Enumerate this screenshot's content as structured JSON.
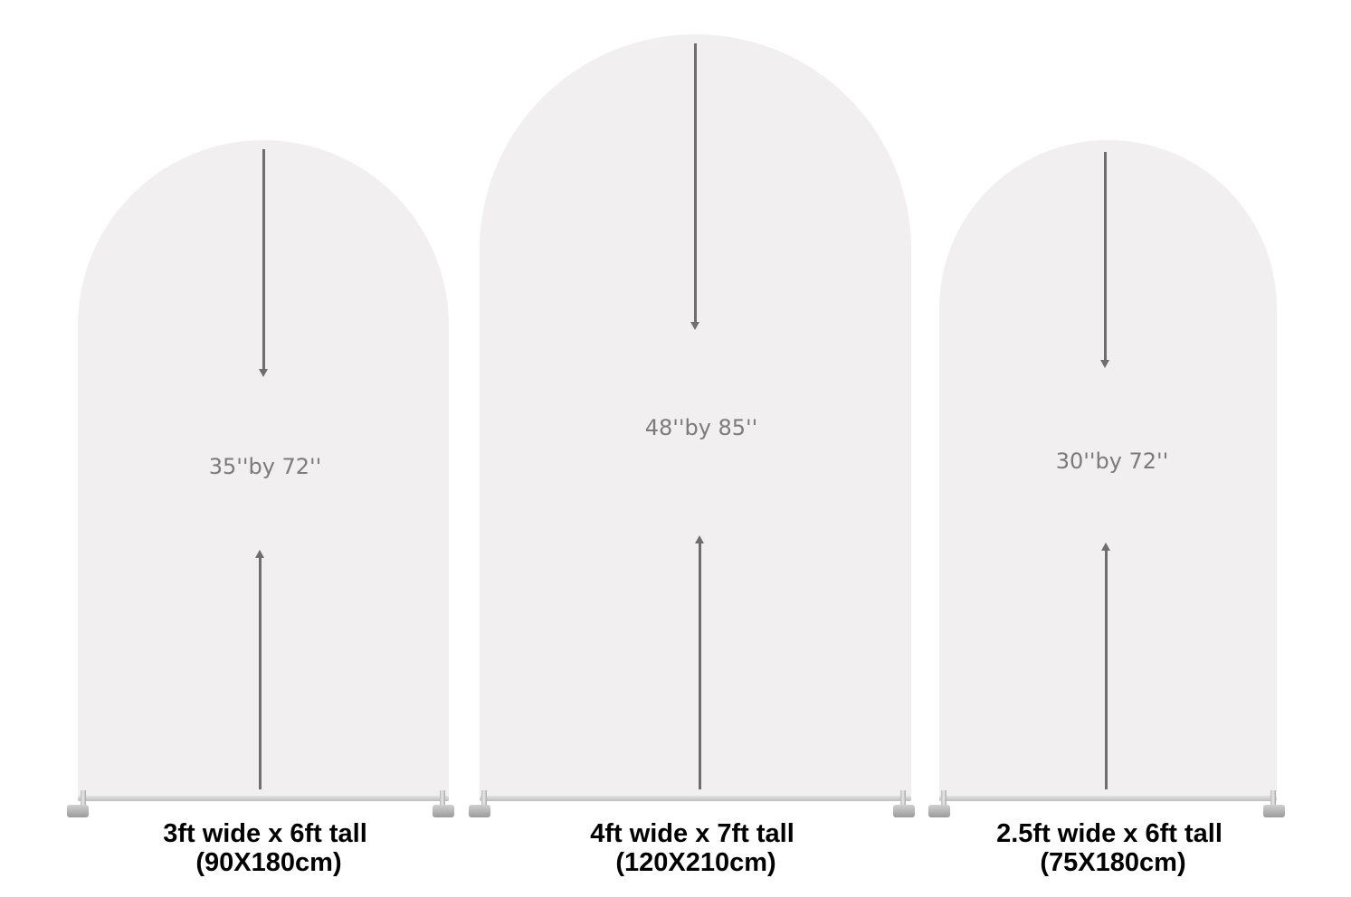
{
  "arches": [
    {
      "size_label": "35''by 72''",
      "caption_line1": "3ft wide x 6ft tall",
      "caption_line2": "(90X180cm)"
    },
    {
      "size_label": "48''by 85''",
      "caption_line1": "4ft wide x 7ft tall",
      "caption_line2": "(120X210cm)"
    },
    {
      "size_label": "30''by 72''",
      "caption_line1": "2.5ft wide x 6ft tall",
      "caption_line2": "(75X180cm)"
    }
  ],
  "colors": {
    "arch_fill": "#f1efef",
    "arrow": "#6e6e6e",
    "label": "#7b7b7b",
    "caption": "#000000"
  }
}
